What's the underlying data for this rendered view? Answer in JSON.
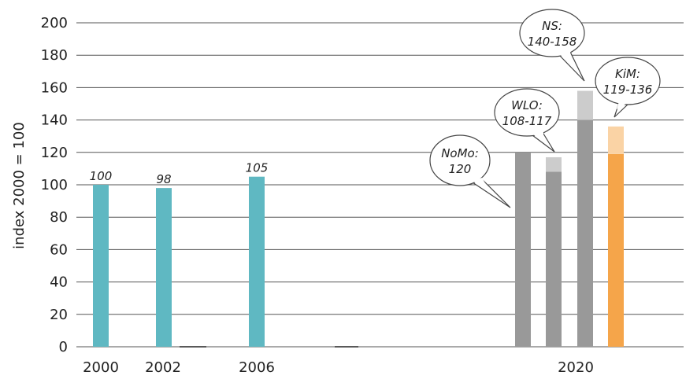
{
  "chart_data": {
    "type": "bar",
    "ylabel": "index 2000 = 100",
    "ylim": [
      0,
      200
    ],
    "yticks": [
      0,
      20,
      40,
      60,
      80,
      100,
      120,
      140,
      160,
      180,
      200
    ],
    "grid": true,
    "x_tick_labels": [
      "2000",
      "2002",
      "2006",
      "2020"
    ],
    "historical": [
      {
        "year": "2000",
        "value": 100,
        "label": "100"
      },
      {
        "year": "2002",
        "value": 98,
        "label": "98"
      },
      {
        "year": "2006",
        "value": 105,
        "label": "105"
      }
    ],
    "scenarios_2020": [
      {
        "name": "NoMo",
        "low": 120,
        "high": 120,
        "callout": [
          "NoMo:",
          "120"
        ]
      },
      {
        "name": "WLO",
        "low": 108,
        "high": 117,
        "callout": [
          "WLO:",
          "108-117"
        ]
      },
      {
        "name": "NS",
        "low": 140,
        "high": 158,
        "callout": [
          "NS:",
          "140-158"
        ]
      },
      {
        "name": "KiM",
        "low": 119,
        "high": 136,
        "callout": [
          "KiM:",
          "119-136"
        ]
      }
    ],
    "colors": {
      "historical": "#5fb8c2",
      "scenario_base": "#999999",
      "scenario_range": "#cccccc",
      "kim_base": "#f5a54a",
      "kim_range": "#fad3a5",
      "grid": "#555555"
    }
  }
}
